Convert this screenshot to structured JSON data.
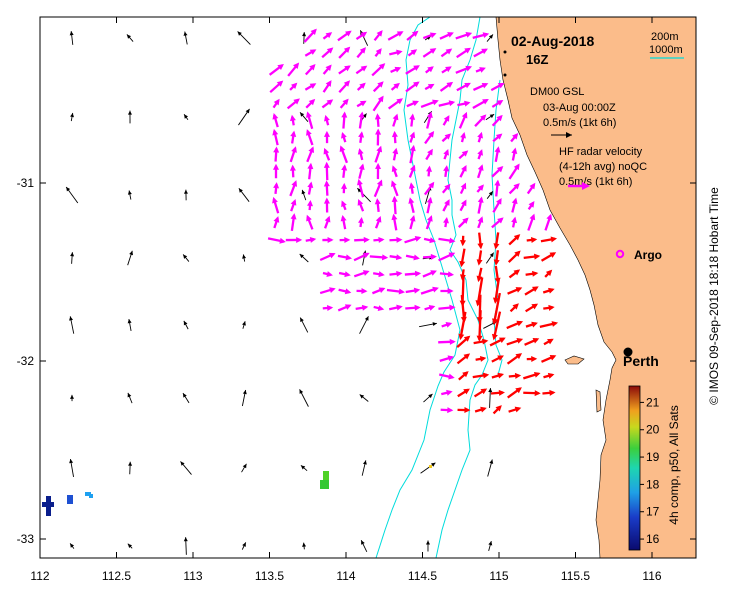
{
  "map": {
    "title_date": "02-Aug-2018",
    "title_time": "16Z",
    "lon_ticks": [
      "112",
      "112.5",
      "113",
      "113.5",
      "114",
      "114.5",
      "115",
      "115.5",
      "116"
    ],
    "lat_ticks": [
      "-31",
      "-32",
      "-33"
    ],
    "depth_legend": {
      "contour_200": "200m",
      "contour_1000": "1000m"
    },
    "model_legend": {
      "name": "DM00 GSL",
      "time": "03-Aug 00:00Z",
      "scale": "0.5m/s (1kt 6h)"
    },
    "radar_legend": {
      "title": "HF radar velocity",
      "subtitle": "(4-12h avg) noQC",
      "scale": "0.5m/s (1kt 6h)"
    },
    "places": {
      "argo": "Argo",
      "city": "Perth"
    },
    "sst_colorbar": {
      "label": "4h comp, p50, All Sats",
      "ticks": [
        "21",
        "20",
        "19",
        "18",
        "17",
        "16"
      ],
      "min": 15.6,
      "max": 21.6
    },
    "credit": "© IMOS 09-Sep-2018 18:18 Hobart Time",
    "colors": {
      "land": "#fbbc8a",
      "contour": "#00dcdc",
      "radar": "#ff00ff",
      "radar_strong": "#ff0000",
      "model": "#000000"
    }
  }
}
